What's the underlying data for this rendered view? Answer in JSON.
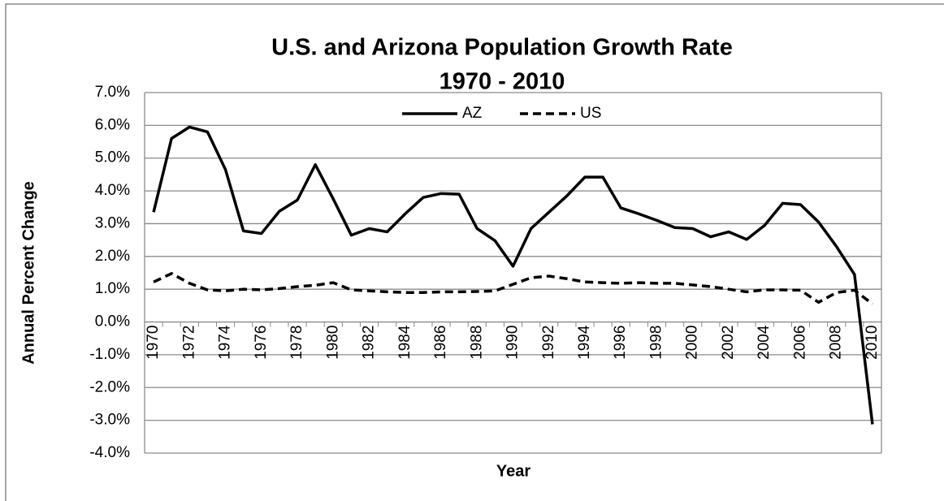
{
  "chart_data": {
    "type": "line",
    "title": "U.S. and Arizona Population Growth Rate",
    "subtitle": "1970 - 2010",
    "x_label": "Year",
    "y_label": "Annual Percent Change",
    "categories": [
      "1970",
      null,
      "1972",
      null,
      "1974",
      null,
      "1976",
      null,
      "1978",
      null,
      "1980",
      null,
      "1982",
      null,
      "1984",
      null,
      "1986",
      null,
      "1988",
      null,
      "1990",
      null,
      "1992",
      null,
      "1994",
      null,
      "1996",
      null,
      "1998",
      null,
      "2000",
      null,
      "2002",
      null,
      "2004",
      null,
      "2006",
      null,
      "2008",
      null,
      "2010"
    ],
    "series": [
      {
        "name": "AZ",
        "color": "#000000",
        "dash": "solid",
        "values": [
          3.35,
          5.6,
          5.95,
          5.8,
          4.65,
          2.78,
          2.7,
          3.38,
          3.72,
          4.8,
          3.75,
          2.65,
          2.85,
          2.75,
          3.3,
          3.8,
          3.92,
          3.9,
          2.85,
          2.48,
          1.7,
          2.85,
          3.35,
          3.85,
          4.42,
          4.42,
          3.48,
          3.3,
          3.1,
          2.88,
          2.85,
          2.6,
          2.75,
          2.52,
          2.95,
          3.62,
          3.58,
          3.05,
          2.3,
          1.45,
          -3.12
        ]
      },
      {
        "name": "US",
        "color": "#000000",
        "dash": "dashed",
        "values": [
          1.22,
          1.48,
          1.18,
          0.98,
          0.95,
          1.0,
          0.98,
          1.02,
          1.08,
          1.12,
          1.2,
          0.98,
          0.95,
          0.92,
          0.9,
          0.9,
          0.92,
          0.92,
          0.93,
          0.95,
          1.15,
          1.35,
          1.4,
          1.32,
          1.22,
          1.2,
          1.18,
          1.2,
          1.18,
          1.18,
          1.13,
          1.08,
          1.0,
          0.92,
          0.98,
          0.98,
          0.97,
          0.6,
          0.9,
          0.97,
          0.55
        ]
      }
    ],
    "ylim": [
      -4,
      7
    ],
    "yticks": [
      {
        "value": -4,
        "label": "-4.0%"
      },
      {
        "value": -3,
        "label": "-3.0%"
      },
      {
        "value": -2,
        "label": "-2.0%"
      },
      {
        "value": -1,
        "label": "-1.0%"
      },
      {
        "value": 0,
        "label": "0.0%"
      },
      {
        "value": 1,
        "label": "1.0%"
      },
      {
        "value": 2,
        "label": "2.0%"
      },
      {
        "value": 3,
        "label": "3.0%"
      },
      {
        "value": 4,
        "label": "4.0%"
      },
      {
        "value": 5,
        "label": "5.0%"
      },
      {
        "value": 6,
        "label": "6.0%"
      },
      {
        "value": 7,
        "label": "7.0%"
      }
    ],
    "grid": true,
    "legend": "top"
  }
}
